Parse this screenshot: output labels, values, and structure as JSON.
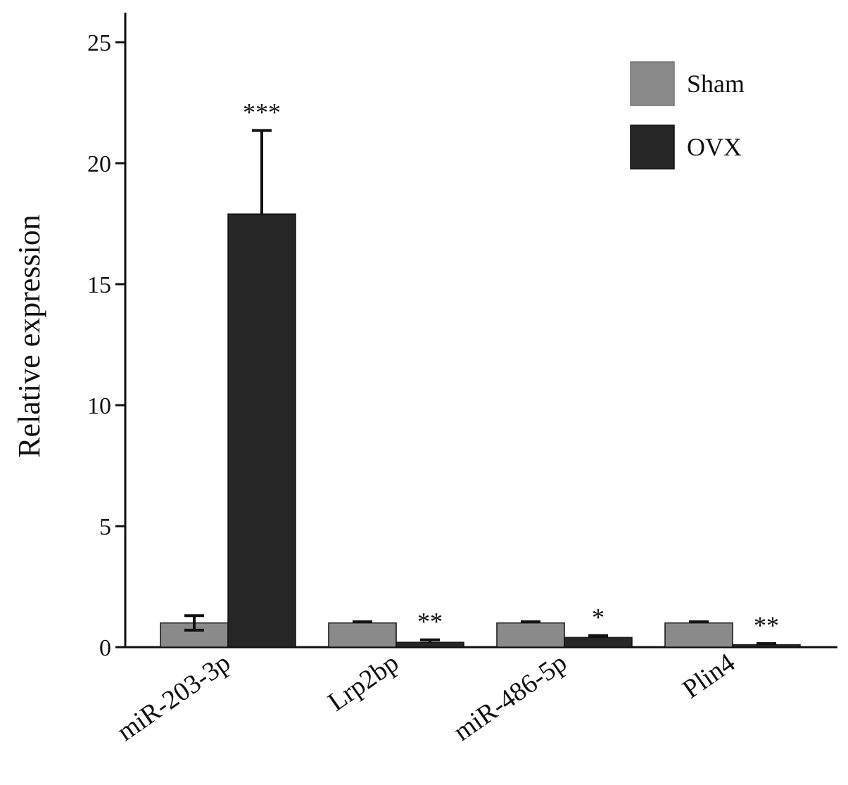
{
  "chart_data": {
    "type": "bar",
    "title": "",
    "ylabel": "Relative expression",
    "xlabel": "",
    "ylim": [
      0,
      26
    ],
    "yticks": [
      0,
      5,
      10,
      15,
      20,
      25
    ],
    "categories": [
      "miR-203-3p",
      "Lrp2bp",
      "miR-486-5p",
      "Plin4"
    ],
    "series": [
      {
        "name": "Sham",
        "color": "#8a8a8a",
        "values": [
          1.0,
          1.0,
          1.0,
          1.0
        ],
        "errors": [
          0.3,
          0.05,
          0.05,
          0.05
        ]
      },
      {
        "name": "OVX",
        "color": "#262626",
        "values": [
          17.9,
          0.2,
          0.4,
          0.1
        ],
        "errors": [
          3.45,
          0.1,
          0.08,
          0.05
        ]
      }
    ],
    "significance": [
      "***",
      "**",
      "*",
      "**"
    ],
    "legend_position": "top-right",
    "grid": false
  }
}
